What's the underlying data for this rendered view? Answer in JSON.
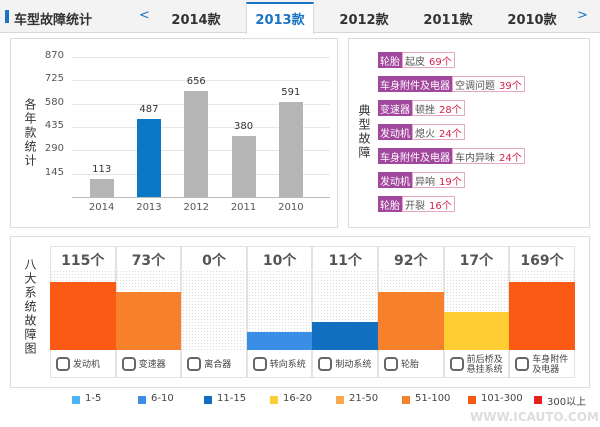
{
  "header": {
    "title": "车型故障统计",
    "prev": "<",
    "next": ">",
    "tabs": [
      "2014款",
      "2013款",
      "2012款",
      "2011款",
      "2010款"
    ],
    "active_tab": 1
  },
  "chart_data": [
    {
      "type": "bar",
      "y_label": "各年款统计",
      "categories": [
        "2014",
        "2013",
        "2012",
        "2011",
        "2010"
      ],
      "values": [
        113,
        487,
        656,
        380,
        591
      ],
      "colors": [
        "#b5b5b5",
        "#0b78c5",
        "#b5b5b5",
        "#b5b5b5",
        "#b5b5b5"
      ],
      "ylim": [
        0,
        870
      ],
      "yticks": [
        145,
        290,
        435,
        580,
        725,
        870
      ],
      "grid": true
    },
    {
      "type": "tier-bar",
      "y_label": "八大系统故障图",
      "categories": [
        "发动机",
        "变速器",
        "离合器",
        "转向系统",
        "制动系统",
        "轮胎",
        "前后桥及悬挂系统",
        "车身附件及电器"
      ],
      "values": [
        115,
        73,
        0,
        10,
        11,
        92,
        17,
        169
      ],
      "value_labels": [
        "115个",
        "73个",
        "0个",
        "10个",
        "11个",
        "92个",
        "17个",
        "169个"
      ],
      "legend": [
        {
          "label": "1-5",
          "color": "#4db3f5"
        },
        {
          "label": "6-10",
          "color": "#3a8ee6"
        },
        {
          "label": "11-15",
          "color": "#1170c0"
        },
        {
          "label": "16-20",
          "color": "#ffcc33"
        },
        {
          "label": "21-50",
          "color": "#fba94c"
        },
        {
          "label": "51-100",
          "color": "#f7802b"
        },
        {
          "label": "101-300",
          "color": "#fb5a14"
        },
        {
          "label": "300以上",
          "color": "#e8201a"
        }
      ]
    }
  ],
  "faults": {
    "label": "典型故障",
    "items": [
      {
        "system": "轮胎",
        "part": "起皮",
        "count": "69个"
      },
      {
        "system": "车身附件及电器",
        "part": "空调问题",
        "count": "39个"
      },
      {
        "system": "变速器",
        "part": "顿挫",
        "count": "28个"
      },
      {
        "system": "发动机",
        "part": "熄火",
        "count": "24个"
      },
      {
        "system": "车身附件及电器",
        "part": "车内异味",
        "count": "24个"
      },
      {
        "system": "发动机",
        "part": "异响",
        "count": "19个"
      },
      {
        "system": "轮胎",
        "part": "开裂",
        "count": "16个"
      }
    ]
  },
  "watermark": "WWW.ICAUTO.COM.CN"
}
